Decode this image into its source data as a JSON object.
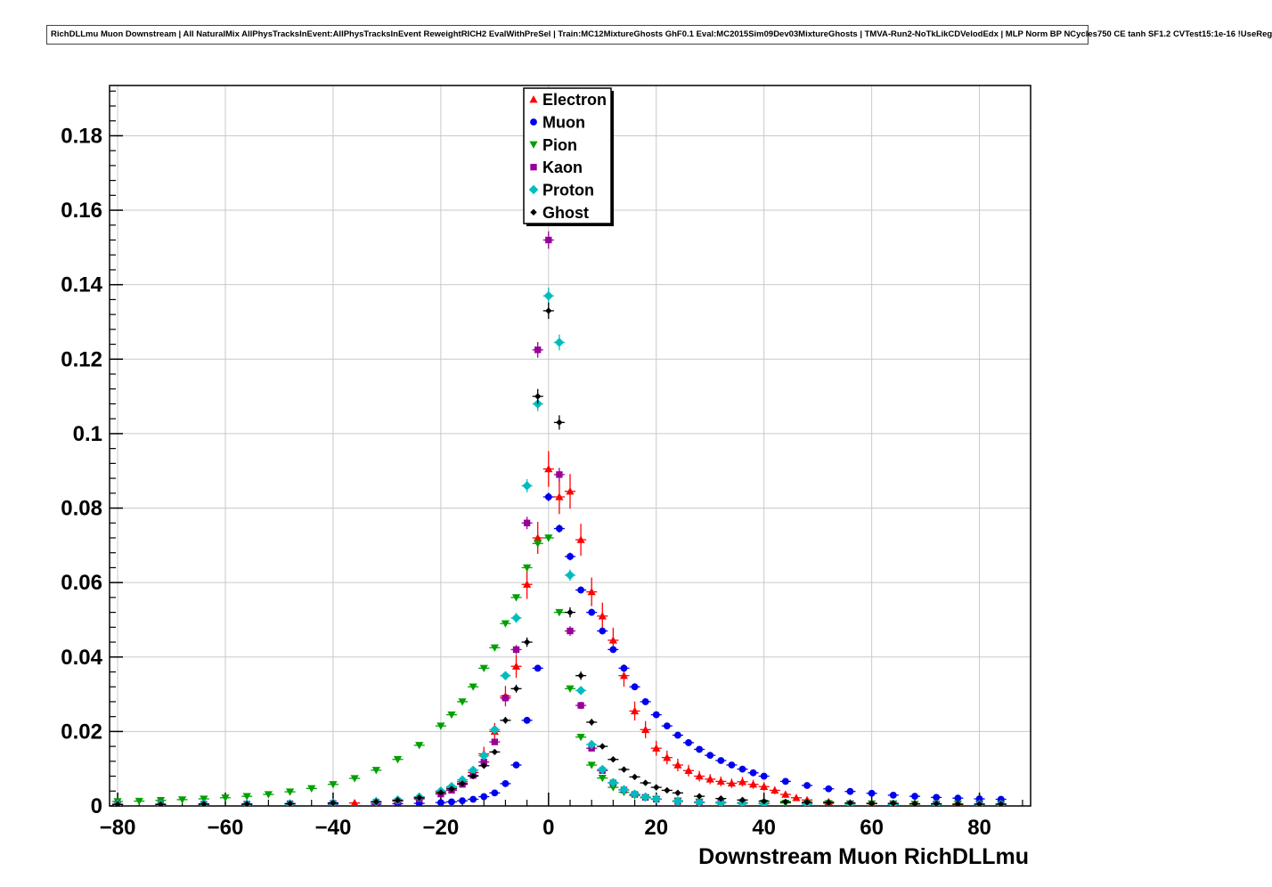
{
  "header": {
    "title": "RichDLLmu Muon Downstream | All NaturalMix AllPhysTracksInEvent:AllPhysTracksInEvent ReweightRICH2 EvalWithPreSel | Train:MC12MixtureGhosts GhF0.1 Eval:MC2015Sim09Dev03MixtureGhosts | TMVA-Run2-NoTkLikCDVelodEdx | MLP Norm BP NCycles750 CE tanh SF1.2 CVTest15:1e-16 !UseReg"
  },
  "chart_data": {
    "type": "scatter",
    "title": "RichDLLmu Muon Downstream | All NaturalMix AllPhysTracksInEvent:AllPhysTracksInEvent ReweightRICH2 EvalWithPreSel | Train:MC12MixtureGhosts GhF0.1 Eval:MC2015Sim09Dev03MixtureGhosts | TMVA-Run2-NoTkLikCDVelodEdx | MLP Norm BP NCycles750 CE tanh SF1.2 CVTest15:1e-16 !UseReg",
    "xlabel": "Downstream Muon RichDLLmu",
    "ylabel": "",
    "xlim": [
      -81.5,
      89.5
    ],
    "ylim": [
      0,
      0.1935
    ],
    "grid": true,
    "frame_color": "#000000",
    "grid_color": "#c9c9c9",
    "xticks": {
      "values": [
        -80,
        -60,
        -40,
        -20,
        0,
        20,
        40,
        60,
        80
      ],
      "labels": [
        "−80",
        "−60",
        "−40",
        "−20",
        "0",
        "20",
        "40",
        "60",
        "80"
      ],
      "minor_step": 4
    },
    "yticks": {
      "values": [
        0,
        0.02,
        0.04,
        0.06,
        0.08,
        0.1,
        0.12,
        0.14,
        0.16,
        0.18
      ],
      "labels": [
        "0",
        "0.02",
        "0.04",
        "0.06",
        "0.08",
        "0.1",
        "0.12",
        "0.14",
        "0.16",
        "0.18"
      ],
      "minor_step": 0.004
    },
    "legend": {
      "position": "top-center"
    },
    "series": [
      {
        "name": "Electron",
        "color": "#ff0000",
        "marker": "triangle-up",
        "yerr_scale": 0.016,
        "points": [
          [
            -80,
            0.0005
          ],
          [
            -72,
            0.0005
          ],
          [
            -64,
            0.0005
          ],
          [
            -56,
            0.0005
          ],
          [
            -48,
            0.0006
          ],
          [
            -40,
            0.0007
          ],
          [
            -36,
            0.0008
          ],
          [
            -32,
            0.0011
          ],
          [
            -28,
            0.0016
          ],
          [
            -24,
            0.0024
          ],
          [
            -20,
            0.004
          ],
          [
            -18,
            0.005
          ],
          [
            -16,
            0.0065
          ],
          [
            -14,
            0.009
          ],
          [
            -12,
            0.014
          ],
          [
            -10,
            0.02
          ],
          [
            -8,
            0.0295
          ],
          [
            -6,
            0.0375
          ],
          [
            -4,
            0.0595
          ],
          [
            -2,
            0.072
          ],
          [
            0,
            0.0905
          ],
          [
            2,
            0.083
          ],
          [
            4,
            0.0845
          ],
          [
            6,
            0.0715
          ],
          [
            8,
            0.0575
          ],
          [
            10,
            0.051
          ],
          [
            12,
            0.0445
          ],
          [
            14,
            0.035
          ],
          [
            16,
            0.0255
          ],
          [
            18,
            0.0205
          ],
          [
            20,
            0.0155
          ],
          [
            22,
            0.013
          ],
          [
            24,
            0.011
          ],
          [
            26,
            0.0095
          ],
          [
            28,
            0.008
          ],
          [
            30,
            0.0072
          ],
          [
            32,
            0.0066
          ],
          [
            34,
            0.0061
          ],
          [
            36,
            0.0065
          ],
          [
            38,
            0.0058
          ],
          [
            40,
            0.0052
          ],
          [
            42,
            0.0042
          ],
          [
            44,
            0.0031
          ],
          [
            46,
            0.0022
          ],
          [
            48,
            0.0016
          ],
          [
            52,
            0.0011
          ],
          [
            56,
            0.0008
          ],
          [
            60,
            0.0007
          ],
          [
            64,
            0.0006
          ],
          [
            68,
            0.0005
          ],
          [
            72,
            0.0005
          ],
          [
            76,
            0.0004
          ],
          [
            80,
            0.0004
          ],
          [
            84,
            0.0004
          ]
        ]
      },
      {
        "name": "Muon",
        "color": "#0000ee",
        "marker": "circle",
        "yerr_scale": 0.004,
        "points": [
          [
            -80,
            0.0004
          ],
          [
            -72,
            0.0004
          ],
          [
            -64,
            0.0004
          ],
          [
            -56,
            0.0004
          ],
          [
            -48,
            0.0005
          ],
          [
            -40,
            0.0005
          ],
          [
            -32,
            0.0005
          ],
          [
            -28,
            0.0006
          ],
          [
            -24,
            0.0007
          ],
          [
            -20,
            0.0009
          ],
          [
            -18,
            0.0011
          ],
          [
            -16,
            0.0014
          ],
          [
            -14,
            0.0018
          ],
          [
            -12,
            0.0025
          ],
          [
            -10,
            0.0035
          ],
          [
            -8,
            0.006
          ],
          [
            -6,
            0.011
          ],
          [
            -4,
            0.023
          ],
          [
            -2,
            0.037
          ],
          [
            0,
            0.083
          ],
          [
            2,
            0.0745
          ],
          [
            4,
            0.067
          ],
          [
            6,
            0.058
          ],
          [
            8,
            0.052
          ],
          [
            10,
            0.047
          ],
          [
            12,
            0.042
          ],
          [
            14,
            0.037
          ],
          [
            16,
            0.032
          ],
          [
            18,
            0.028
          ],
          [
            20,
            0.0245
          ],
          [
            22,
            0.0215
          ],
          [
            24,
            0.019
          ],
          [
            26,
            0.017
          ],
          [
            28,
            0.0152
          ],
          [
            30,
            0.0136
          ],
          [
            32,
            0.0122
          ],
          [
            34,
            0.011
          ],
          [
            36,
            0.0099
          ],
          [
            38,
            0.0089
          ],
          [
            40,
            0.008
          ],
          [
            44,
            0.0066
          ],
          [
            48,
            0.0055
          ],
          [
            52,
            0.0046
          ],
          [
            56,
            0.0039
          ],
          [
            60,
            0.0034
          ],
          [
            64,
            0.0029
          ],
          [
            68,
            0.0026
          ],
          [
            72,
            0.0023
          ],
          [
            76,
            0.0021
          ],
          [
            80,
            0.0019
          ],
          [
            84,
            0.0018
          ]
        ]
      },
      {
        "name": "Pion",
        "color": "#00a000",
        "marker": "triangle-down",
        "yerr_scale": 0.0035,
        "points": [
          [
            -80,
            0.0012
          ],
          [
            -76,
            0.0013
          ],
          [
            -72,
            0.0015
          ],
          [
            -68,
            0.0017
          ],
          [
            -64,
            0.0019
          ],
          [
            -60,
            0.0022
          ],
          [
            -56,
            0.0026
          ],
          [
            -52,
            0.0031
          ],
          [
            -48,
            0.0038
          ],
          [
            -44,
            0.0047
          ],
          [
            -40,
            0.0058
          ],
          [
            -36,
            0.0074
          ],
          [
            -32,
            0.0096
          ],
          [
            -28,
            0.0125
          ],
          [
            -24,
            0.0163
          ],
          [
            -20,
            0.0215
          ],
          [
            -18,
            0.0245
          ],
          [
            -16,
            0.028
          ],
          [
            -14,
            0.032
          ],
          [
            -12,
            0.037
          ],
          [
            -10,
            0.0425
          ],
          [
            -8,
            0.049
          ],
          [
            -6,
            0.056
          ],
          [
            -4,
            0.064
          ],
          [
            -2,
            0.0705
          ],
          [
            0,
            0.072
          ],
          [
            2,
            0.052
          ],
          [
            4,
            0.0315
          ],
          [
            6,
            0.0185
          ],
          [
            8,
            0.011
          ],
          [
            10,
            0.0075
          ],
          [
            12,
            0.005
          ],
          [
            14,
            0.0037
          ],
          [
            16,
            0.0028
          ],
          [
            18,
            0.0022
          ],
          [
            20,
            0.0018
          ],
          [
            24,
            0.0014
          ],
          [
            28,
            0.0011
          ],
          [
            32,
            0.001
          ],
          [
            36,
            0.0009
          ],
          [
            40,
            0.0008
          ],
          [
            44,
            0.0008
          ],
          [
            48,
            0.0007
          ],
          [
            52,
            0.0007
          ],
          [
            56,
            0.0006
          ],
          [
            60,
            0.0006
          ],
          [
            64,
            0.0006
          ],
          [
            68,
            0.0005
          ],
          [
            72,
            0.0005
          ],
          [
            76,
            0.0005
          ],
          [
            80,
            0.0005
          ],
          [
            84,
            0.0005
          ]
        ]
      },
      {
        "name": "Kaon",
        "color": "#990099",
        "marker": "square",
        "yerr_scale": 0.006,
        "points": [
          [
            -80,
            0.0004
          ],
          [
            -72,
            0.0004
          ],
          [
            -64,
            0.0005
          ],
          [
            -56,
            0.0005
          ],
          [
            -48,
            0.0006
          ],
          [
            -40,
            0.0007
          ],
          [
            -32,
            0.001
          ],
          [
            -28,
            0.0013
          ],
          [
            -24,
            0.0019
          ],
          [
            -20,
            0.0032
          ],
          [
            -18,
            0.0042
          ],
          [
            -16,
            0.0058
          ],
          [
            -14,
            0.0082
          ],
          [
            -12,
            0.0118
          ],
          [
            -10,
            0.0172
          ],
          [
            -8,
            0.029
          ],
          [
            -6,
            0.042
          ],
          [
            -4,
            0.076
          ],
          [
            -2,
            0.1225
          ],
          [
            0,
            0.152
          ],
          [
            2,
            0.089
          ],
          [
            4,
            0.047
          ],
          [
            6,
            0.027
          ],
          [
            8,
            0.0155
          ],
          [
            10,
            0.0095
          ],
          [
            12,
            0.0062
          ],
          [
            14,
            0.0043
          ],
          [
            16,
            0.0031
          ],
          [
            18,
            0.0023
          ],
          [
            20,
            0.0018
          ],
          [
            24,
            0.0012
          ],
          [
            28,
            0.0009
          ],
          [
            32,
            0.0008
          ],
          [
            36,
            0.0007
          ],
          [
            40,
            0.0006
          ],
          [
            48,
            0.0005
          ],
          [
            56,
            0.0005
          ],
          [
            64,
            0.0004
          ],
          [
            72,
            0.0004
          ],
          [
            80,
            0.0004
          ],
          [
            84,
            0.0004
          ]
        ]
      },
      {
        "name": "Proton",
        "color": "#00bdbd",
        "marker": "diamond",
        "yerr_scale": 0.006,
        "points": [
          [
            -80,
            0.0004
          ],
          [
            -72,
            0.0004
          ],
          [
            -64,
            0.0005
          ],
          [
            -56,
            0.0005
          ],
          [
            -48,
            0.0006
          ],
          [
            -40,
            0.0008
          ],
          [
            -32,
            0.0012
          ],
          [
            -28,
            0.0016
          ],
          [
            -24,
            0.0024
          ],
          [
            -20,
            0.004
          ],
          [
            -18,
            0.0052
          ],
          [
            -16,
            0.007
          ],
          [
            -14,
            0.0096
          ],
          [
            -12,
            0.0135
          ],
          [
            -10,
            0.0205
          ],
          [
            -8,
            0.035
          ],
          [
            -6,
            0.0505
          ],
          [
            -4,
            0.086
          ],
          [
            -2,
            0.108
          ],
          [
            0,
            0.137
          ],
          [
            2,
            0.1245
          ],
          [
            4,
            0.062
          ],
          [
            6,
            0.031
          ],
          [
            8,
            0.0165
          ],
          [
            10,
            0.0098
          ],
          [
            12,
            0.0063
          ],
          [
            14,
            0.0044
          ],
          [
            16,
            0.0032
          ],
          [
            18,
            0.0024
          ],
          [
            20,
            0.0019
          ],
          [
            24,
            0.0013
          ],
          [
            28,
            0.001
          ],
          [
            32,
            0.0008
          ],
          [
            36,
            0.0007
          ],
          [
            40,
            0.0006
          ],
          [
            48,
            0.0005
          ],
          [
            56,
            0.0005
          ],
          [
            64,
            0.0004
          ],
          [
            72,
            0.0004
          ],
          [
            80,
            0.0004
          ],
          [
            84,
            0.0004
          ]
        ]
      },
      {
        "name": "Ghost",
        "color": "#000000",
        "marker": "diamond-small",
        "yerr_scale": 0.006,
        "points": [
          [
            -80,
            0.0004
          ],
          [
            -72,
            0.0004
          ],
          [
            -64,
            0.0005
          ],
          [
            -56,
            0.0005
          ],
          [
            -48,
            0.0006
          ],
          [
            -40,
            0.0008
          ],
          [
            -32,
            0.0011
          ],
          [
            -28,
            0.0015
          ],
          [
            -24,
            0.0022
          ],
          [
            -20,
            0.0036
          ],
          [
            -18,
            0.0046
          ],
          [
            -16,
            0.006
          ],
          [
            -14,
            0.008
          ],
          [
            -12,
            0.0108
          ],
          [
            -10,
            0.0145
          ],
          [
            -8,
            0.023
          ],
          [
            -6,
            0.0315
          ],
          [
            -4,
            0.044
          ],
          [
            -2,
            0.11
          ],
          [
            0,
            0.133
          ],
          [
            2,
            0.103
          ],
          [
            4,
            0.052
          ],
          [
            6,
            0.035
          ],
          [
            8,
            0.0225
          ],
          [
            10,
            0.016
          ],
          [
            12,
            0.0125
          ],
          [
            14,
            0.0098
          ],
          [
            16,
            0.0078
          ],
          [
            18,
            0.0062
          ],
          [
            20,
            0.005
          ],
          [
            22,
            0.0042
          ],
          [
            24,
            0.0035
          ],
          [
            28,
            0.0026
          ],
          [
            32,
            0.002
          ],
          [
            36,
            0.0016
          ],
          [
            40,
            0.0013
          ],
          [
            44,
            0.0011
          ],
          [
            48,
            0.001
          ],
          [
            52,
            0.0009
          ],
          [
            56,
            0.0008
          ],
          [
            60,
            0.0007
          ],
          [
            64,
            0.0007
          ],
          [
            68,
            0.0006
          ],
          [
            72,
            0.0006
          ],
          [
            76,
            0.0005
          ],
          [
            80,
            0.0005
          ],
          [
            84,
            0.0005
          ]
        ]
      }
    ]
  }
}
